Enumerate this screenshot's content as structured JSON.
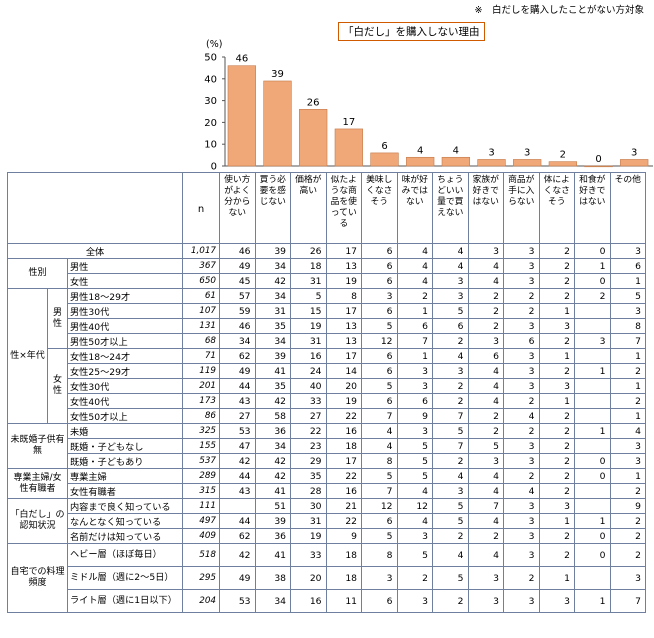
{
  "note": "※　白だしを購入したことがない方対象",
  "chart_data": {
    "type": "bar",
    "title": "「白だし」を購入しない理由",
    "ylabel": "(%)",
    "ylim": [
      0,
      50
    ],
    "yticks": [
      0,
      10,
      20,
      30,
      40,
      50
    ],
    "categories": [
      "使い方がよく分からない",
      "買う必要を感じない",
      "価格が高い",
      "似たような商品を使っている",
      "美味しくなさそう",
      "味が好みではない",
      "ちょうどいい量で買えない",
      "家族が好きではない",
      "商品が手に入らない",
      "体によくなさそう",
      "和食が好きではない",
      "その他"
    ],
    "values": [
      46,
      39,
      26,
      17,
      6,
      4,
      4,
      3,
      3,
      2,
      0,
      3
    ],
    "bar_color": "#f0a878"
  },
  "table": {
    "n_header": "n",
    "headers": [
      "使い方がよく分からない",
      "買う必要を感じない",
      "価格が高い",
      "似たような商品を使っている",
      "美味しくなさそう",
      "味が好みではない",
      "ちょうどいい量で買えない",
      "家族が好きではない",
      "商品が手に入らない",
      "体によくなさそう",
      "和食が好きではない",
      "その他"
    ],
    "total": {
      "label": "全体",
      "n": "1,017",
      "values": [
        "46",
        "39",
        "26",
        "17",
        "6",
        "4",
        "4",
        "3",
        "3",
        "2",
        "0",
        "3"
      ]
    },
    "groups": [
      {
        "label": "性別",
        "rows": [
          {
            "label": "男性",
            "n": "367",
            "values": [
              "49",
              "34",
              "18",
              "13",
              "6",
              "4",
              "4",
              "4",
              "3",
              "2",
              "1",
              "6"
            ]
          },
          {
            "label": "女性",
            "n": "650",
            "values": [
              "45",
              "42",
              "31",
              "19",
              "6",
              "4",
              "3",
              "4",
              "3",
              "2",
              "0",
              "1"
            ]
          }
        ]
      },
      {
        "label": "性×年代",
        "sub": [
          {
            "label": "男性",
            "rows": [
              {
                "label": "男性18～29才",
                "n": "61",
                "values": [
                  "57",
                  "34",
                  "5",
                  "8",
                  "3",
                  "2",
                  "3",
                  "2",
                  "2",
                  "2",
                  "2",
                  "5"
                ]
              },
              {
                "label": "男性30代",
                "n": "107",
                "values": [
                  "59",
                  "31",
                  "15",
                  "17",
                  "6",
                  "1",
                  "5",
                  "2",
                  "2",
                  "1",
                  "",
                  "3"
                ]
              },
              {
                "label": "男性40代",
                "n": "131",
                "values": [
                  "46",
                  "35",
                  "19",
                  "13",
                  "5",
                  "6",
                  "6",
                  "2",
                  "3",
                  "3",
                  "",
                  "8"
                ]
              },
              {
                "label": "男性50才以上",
                "n": "68",
                "values": [
                  "34",
                  "34",
                  "31",
                  "13",
                  "12",
                  "7",
                  "2",
                  "3",
                  "6",
                  "2",
                  "3",
                  "7"
                ]
              }
            ]
          },
          {
            "label": "女性",
            "rows": [
              {
                "label": "女性18～24才",
                "n": "71",
                "values": [
                  "62",
                  "39",
                  "16",
                  "17",
                  "6",
                  "1",
                  "4",
                  "6",
                  "3",
                  "1",
                  "",
                  "1"
                ]
              },
              {
                "label": "女性25～29才",
                "n": "119",
                "values": [
                  "49",
                  "41",
                  "24",
                  "14",
                  "6",
                  "3",
                  "3",
                  "4",
                  "3",
                  "2",
                  "1",
                  "2"
                ]
              },
              {
                "label": "女性30代",
                "n": "201",
                "values": [
                  "44",
                  "35",
                  "40",
                  "20",
                  "5",
                  "3",
                  "2",
                  "4",
                  "3",
                  "3",
                  "",
                  "1"
                ]
              },
              {
                "label": "女性40代",
                "n": "173",
                "values": [
                  "43",
                  "42",
                  "33",
                  "19",
                  "6",
                  "6",
                  "2",
                  "4",
                  "2",
                  "1",
                  "",
                  "2"
                ]
              },
              {
                "label": "女性50才以上",
                "n": "86",
                "values": [
                  "27",
                  "58",
                  "27",
                  "22",
                  "7",
                  "9",
                  "7",
                  "2",
                  "4",
                  "2",
                  "",
                  "1"
                ]
              }
            ]
          }
        ]
      },
      {
        "label": "未既婚子供有無",
        "rows": [
          {
            "label": "未婚",
            "n": "325",
            "values": [
              "53",
              "36",
              "22",
              "16",
              "4",
              "3",
              "5",
              "2",
              "2",
              "2",
              "1",
              "4"
            ]
          },
          {
            "label": "既婚・子どもなし",
            "n": "155",
            "values": [
              "47",
              "34",
              "23",
              "18",
              "4",
              "5",
              "7",
              "5",
              "3",
              "2",
              "",
              "3"
            ]
          },
          {
            "label": "既婚・子どもあり",
            "n": "537",
            "values": [
              "42",
              "42",
              "29",
              "17",
              "8",
              "5",
              "2",
              "3",
              "3",
              "2",
              "0",
              "3"
            ]
          }
        ]
      },
      {
        "label": "専業主婦/女性有職者",
        "rows": [
          {
            "label": "専業主婦",
            "n": "289",
            "values": [
              "44",
              "42",
              "35",
              "22",
              "5",
              "5",
              "4",
              "4",
              "2",
              "2",
              "0",
              "1"
            ]
          },
          {
            "label": "女性有職者",
            "n": "315",
            "values": [
              "43",
              "41",
              "28",
              "16",
              "7",
              "4",
              "3",
              "4",
              "4",
              "2",
              "",
              "2"
            ]
          }
        ]
      },
      {
        "label": "「白だし」の認知状況",
        "rows": [
          {
            "label": "内容まで良く知っている",
            "n": "111",
            "values": [
              "",
              "51",
              "30",
              "21",
              "12",
              "12",
              "5",
              "7",
              "3",
              "3",
              "",
              "9"
            ]
          },
          {
            "label": "なんとなく知っている",
            "n": "497",
            "values": [
              "44",
              "39",
              "31",
              "22",
              "6",
              "4",
              "5",
              "4",
              "3",
              "1",
              "1",
              "2"
            ]
          },
          {
            "label": "名前だけは知っている",
            "n": "409",
            "values": [
              "62",
              "36",
              "19",
              "9",
              "5",
              "3",
              "2",
              "2",
              "3",
              "2",
              "0",
              "2"
            ]
          }
        ]
      },
      {
        "label": "自宅での料理頻度",
        "rows": [
          {
            "label": "ヘビー層（ほぼ毎日）",
            "n": "518",
            "values": [
              "42",
              "41",
              "33",
              "18",
              "8",
              "5",
              "4",
              "4",
              "3",
              "2",
              "0",
              "2"
            ]
          },
          {
            "label": "ミドル層（週に2～5日）",
            "n": "295",
            "values": [
              "49",
              "38",
              "20",
              "18",
              "3",
              "2",
              "5",
              "3",
              "2",
              "1",
              "",
              "3"
            ]
          },
          {
            "label": "ライト層（週に1日以下）",
            "n": "204",
            "values": [
              "53",
              "34",
              "16",
              "11",
              "6",
              "3",
              "2",
              "3",
              "3",
              "3",
              "1",
              "7"
            ]
          }
        ]
      }
    ]
  }
}
